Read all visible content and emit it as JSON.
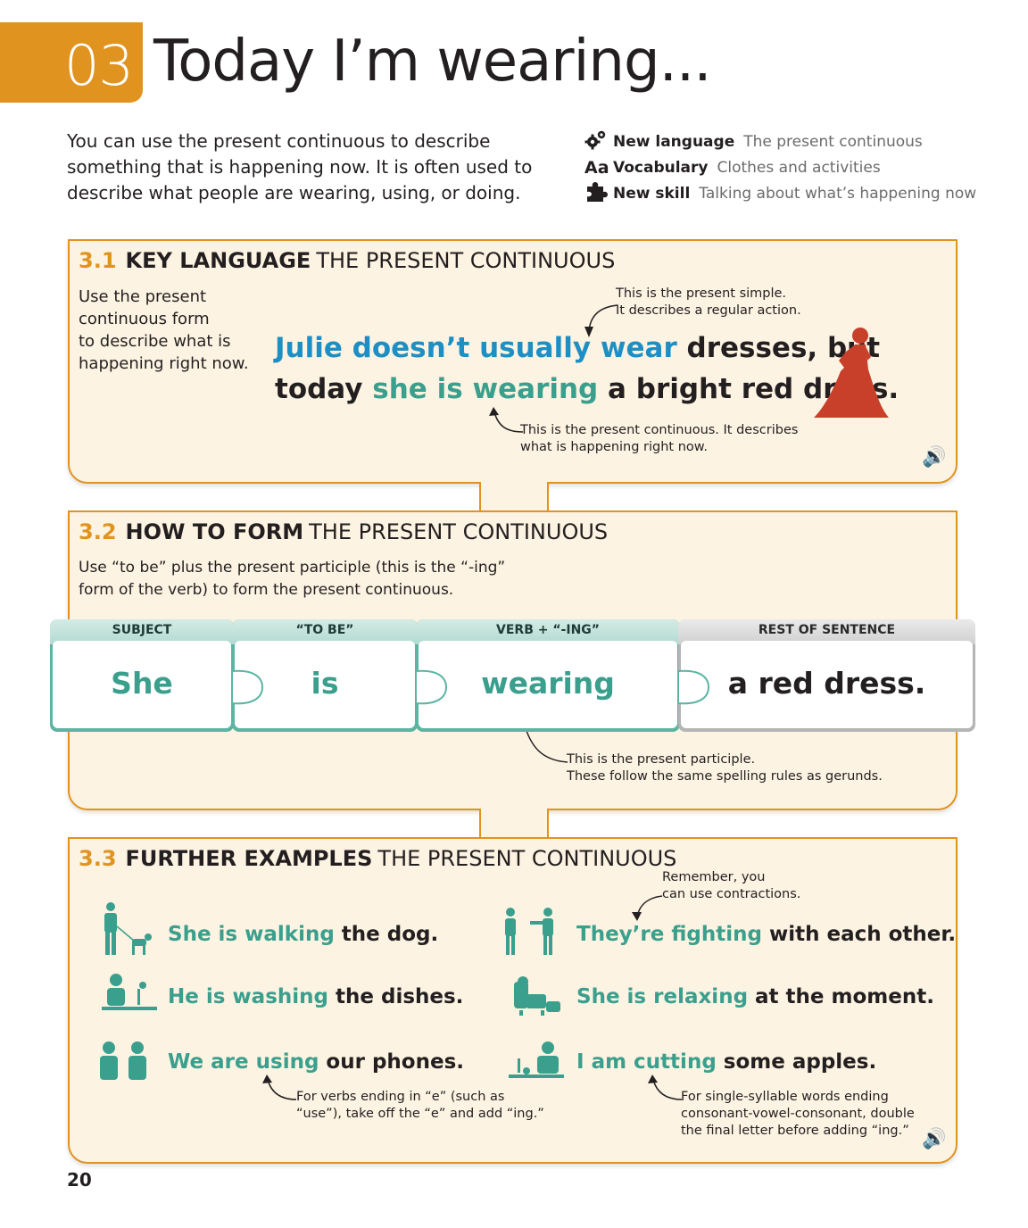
{
  "header": {
    "unit_number": "03",
    "title": "Today I’m wearing..."
  },
  "intro": {
    "text": "You can use the present continuous to describe something that is happening now. It is often used to describe what people are wearing, using, or doing."
  },
  "meta": [
    {
      "icon": "gears-icon",
      "key": "New language",
      "value": "The present continuous"
    },
    {
      "icon": "aa-icon",
      "key": "Vocabulary",
      "value": "Clothes and activities"
    },
    {
      "icon": "puzzle-icon",
      "key": "New skill",
      "value": "Talking about what’s happening now"
    }
  ],
  "s1": {
    "num": "3.1",
    "key": "KEY LANGUAGE",
    "rest": "THE PRESENT CONTINUOUS",
    "side_text": [
      "Use the present",
      "continuous form",
      "to describe what is",
      "happening right now."
    ],
    "note_top": [
      "This is the present simple.",
      "It describes a regular action."
    ],
    "line1_blue": "Julie doesn’t usually wear",
    "line1_black": " dresses, but",
    "line2_a": "today ",
    "line2_teal": "she is wearing",
    "line2_b": " a bright red dress.",
    "note_bottom": [
      "This is the present continuous. It describes",
      "what is happening right now."
    ]
  },
  "s2": {
    "num": "3.2",
    "key": "HOW TO FORM",
    "rest": "THE PRESENT CONTINUOUS",
    "desc": [
      "Use “to be” plus the present participle (this is the “-ing”",
      "form of the verb) to form the present continuous."
    ],
    "pieces": [
      {
        "head": "SUBJECT",
        "word": "She"
      },
      {
        "head": "“TO BE”",
        "word": "is"
      },
      {
        "head": "VERB + “-ING”",
        "word": "wearing"
      },
      {
        "head": "REST OF SENTENCE",
        "word": "a red dress."
      }
    ],
    "note": [
      "This is the present participle.",
      "These follow the same spelling rules as gerunds."
    ]
  },
  "s3": {
    "num": "3.3",
    "key": "FURTHER EXAMPLES",
    "rest": "THE PRESENT CONTINUOUS",
    "examples": [
      {
        "teal": "She is walking",
        "black": " the dog."
      },
      {
        "teal": "He is washing",
        "black": " the dishes."
      },
      {
        "teal": "We are using",
        "black": " our phones."
      },
      {
        "teal": "They’re fighting",
        "black": " with each other."
      },
      {
        "teal": "She is relaxing",
        "black": " at the moment."
      },
      {
        "teal": "I am cutting",
        "black": " some apples."
      }
    ],
    "note_contractions": [
      "Remember, you",
      "can use contractions."
    ],
    "note_e": [
      "For verbs ending in “e” (such as",
      "“use”), take off the “e” and add “ing.”"
    ],
    "note_double": [
      "For single-syllable words ending",
      "consonant-vowel-consonant, double",
      "the final letter before adding “ing.”"
    ]
  },
  "page_number": "20",
  "colors": {
    "orange": "#e0941f",
    "teal": "#3a9f8d",
    "blue": "#1d8fc4",
    "red": "#c8402a",
    "panel": "#fdf3e2"
  }
}
